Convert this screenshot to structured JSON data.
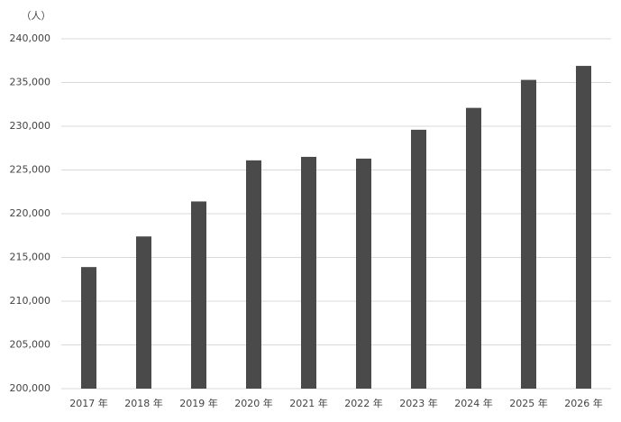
{
  "chart_data": {
    "type": "bar",
    "y_axis_label": "（人）",
    "categories": [
      "2017 年",
      "2018 年",
      "2019 年",
      "2020 年",
      "2021 年",
      "2022 年",
      "2023 年",
      "2024 年",
      "2025 年",
      "2026 年"
    ],
    "values": [
      213900,
      217400,
      221400,
      226100,
      226500,
      226300,
      229600,
      232100,
      235300,
      236900
    ],
    "color": "#4a4a4a",
    "ylim": [
      200000,
      240000
    ],
    "yticks": [
      {
        "value": 200000,
        "label": "200,000"
      },
      {
        "value": 205000,
        "label": "205,000"
      },
      {
        "value": 210000,
        "label": "210,000"
      },
      {
        "value": 215000,
        "label": "215,000"
      },
      {
        "value": 220000,
        "label": "220,000"
      },
      {
        "value": 225000,
        "label": "225,000"
      },
      {
        "value": 230000,
        "label": "230,000"
      },
      {
        "value": 235000,
        "label": "235,000"
      },
      {
        "value": 240000,
        "label": "240,000"
      }
    ],
    "grid": true
  }
}
